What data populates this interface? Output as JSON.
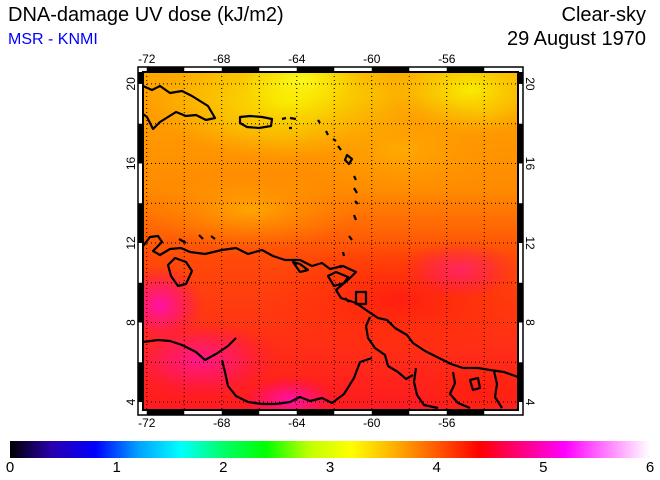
{
  "header": {
    "title": "DNA-damage UV dose (kJ/m2)",
    "credit": "MSR - KNMI",
    "conditions": "Clear-sky",
    "date": "29 August 1970"
  },
  "map": {
    "longitude_ticks": [
      "-72",
      "-68",
      "-64",
      "-60",
      "-56"
    ],
    "latitude_ticks": [
      "20",
      "16",
      "12",
      "8",
      "4"
    ],
    "lon_range": [
      -72.2,
      -52.2
    ],
    "lat_range": [
      3.6,
      20.6
    ],
    "gridlines": "dotted",
    "coastline_color": "#000000"
  },
  "colorbar": {
    "range": [
      0,
      6
    ],
    "ticks": [
      "0",
      "1",
      "2",
      "3",
      "4",
      "5",
      "6"
    ],
    "stops": [
      "#000000",
      "#2a00b0",
      "#0000ff",
      "#00a0ff",
      "#00ffff",
      "#00ff66",
      "#00ff00",
      "#bfff00",
      "#ffff00",
      "#ffb000",
      "#ff5a00",
      "#ff0000",
      "#ff0080",
      "#ff00ff",
      "#ff80ff",
      "#ffffff"
    ]
  }
}
